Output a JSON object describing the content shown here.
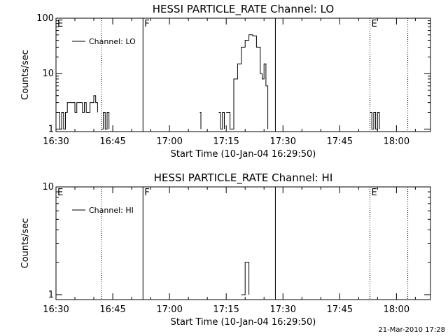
{
  "footer": {
    "timestamp": "21-Mar-2010 17:28"
  },
  "chart_data": [
    {
      "type": "line",
      "title": "HESSI PARTICLE_RATE Channel: LO",
      "xlabel": "Start Time (10-Jan-04 16:29:50)",
      "ylabel": "Counts/sec",
      "yscale": "log",
      "xlim": [
        "16:30",
        "18:09"
      ],
      "ylim": [
        0.9,
        100
      ],
      "xticks": [
        "16:30",
        "16:45",
        "17:00",
        "17:15",
        "17:30",
        "17:45",
        "18:00"
      ],
      "yticks": [
        {
          "v": 1,
          "label": "1"
        },
        {
          "v": 10,
          "label": "10"
        },
        {
          "v": 100,
          "label": "100"
        }
      ],
      "legend": {
        "label": "Channel: LO",
        "placement": "top-left"
      },
      "markers": [
        {
          "time": "16:30",
          "label": "E",
          "style": "none"
        },
        {
          "time": "16:42",
          "label": "",
          "style": "dotted"
        },
        {
          "time": "16:53",
          "label": "F",
          "style": "solid"
        },
        {
          "time": "17:28",
          "label": "",
          "style": "solid"
        },
        {
          "time": "17:53",
          "label": "E",
          "style": "dotted"
        },
        {
          "time": "18:03",
          "label": "",
          "style": "dotted"
        }
      ],
      "segments": [
        [
          [
            "16:30",
            2
          ],
          [
            "16:31",
            1
          ],
          [
            "16:31.5",
            2
          ],
          [
            "16:32",
            1
          ],
          [
            "16:32.5",
            2
          ],
          [
            "16:33",
            3
          ],
          [
            "16:34",
            3
          ],
          [
            "16:35",
            2
          ],
          [
            "16:35.5",
            3
          ],
          [
            "16:36",
            3
          ],
          [
            "16:37",
            2
          ],
          [
            "16:37.5",
            3
          ],
          [
            "16:38",
            2
          ],
          [
            "16:39",
            3
          ],
          [
            "16:40",
            4
          ],
          [
            "16:40.5",
            3
          ],
          [
            "16:41",
            2
          ]
        ],
        [
          [
            "16:42",
            1
          ],
          [
            "16:42.5",
            2
          ],
          [
            "16:43",
            1
          ],
          [
            "16:43.5",
            2
          ],
          [
            "16:44",
            1
          ]
        ],
        [
          [
            "17:08",
            2
          ],
          [
            "17:08.3",
            1
          ]
        ],
        [
          [
            "17:13",
            2
          ],
          [
            "17:13.5",
            1
          ],
          [
            "17:14",
            2
          ],
          [
            "17:14.5",
            1
          ]
        ],
        [
          [
            "17:15",
            2
          ],
          [
            "17:16",
            1
          ],
          [
            "17:17",
            8
          ],
          [
            "17:18",
            15
          ],
          [
            "17:19",
            30
          ],
          [
            "17:20",
            40
          ],
          [
            "17:21",
            50
          ],
          [
            "17:22",
            48
          ],
          [
            "17:23",
            30
          ],
          [
            "17:24",
            10
          ],
          [
            "17:24.5",
            8
          ],
          [
            "17:25",
            15
          ],
          [
            "17:25.5",
            6
          ],
          [
            "17:26",
            1
          ]
        ],
        [
          [
            "17:53",
            2
          ],
          [
            "17:53.5",
            1
          ],
          [
            "17:54",
            2
          ],
          [
            "17:54.5",
            1
          ],
          [
            "17:55",
            2
          ],
          [
            "17:55.5",
            1
          ]
        ]
      ]
    },
    {
      "type": "line",
      "title": "HESSI PARTICLE_RATE Channel: HI",
      "xlabel": "Start Time (10-Jan-04 16:29:50)",
      "ylabel": "Counts/sec",
      "yscale": "log",
      "xlim": [
        "16:30",
        "18:09"
      ],
      "ylim": [
        0.9,
        10
      ],
      "xticks": [
        "16:30",
        "16:45",
        "17:00",
        "17:15",
        "17:30",
        "17:45",
        "18:00"
      ],
      "yticks": [
        {
          "v": 1,
          "label": "1"
        },
        {
          "v": 10,
          "label": "10"
        }
      ],
      "legend": {
        "label": "Channel: HI",
        "placement": "top-left"
      },
      "markers": [
        {
          "time": "16:30",
          "label": "E",
          "style": "none"
        },
        {
          "time": "16:42",
          "label": "",
          "style": "dotted"
        },
        {
          "time": "16:53",
          "label": "F",
          "style": "solid"
        },
        {
          "time": "17:28",
          "label": "",
          "style": "solid"
        },
        {
          "time": "17:53",
          "label": "E",
          "style": "dotted"
        },
        {
          "time": "18:03",
          "label": "",
          "style": "dotted"
        }
      ],
      "segments": [
        [
          [
            "17:19",
            1
          ],
          [
            "17:20",
            2
          ],
          [
            "17:21",
            1
          ]
        ]
      ]
    }
  ]
}
